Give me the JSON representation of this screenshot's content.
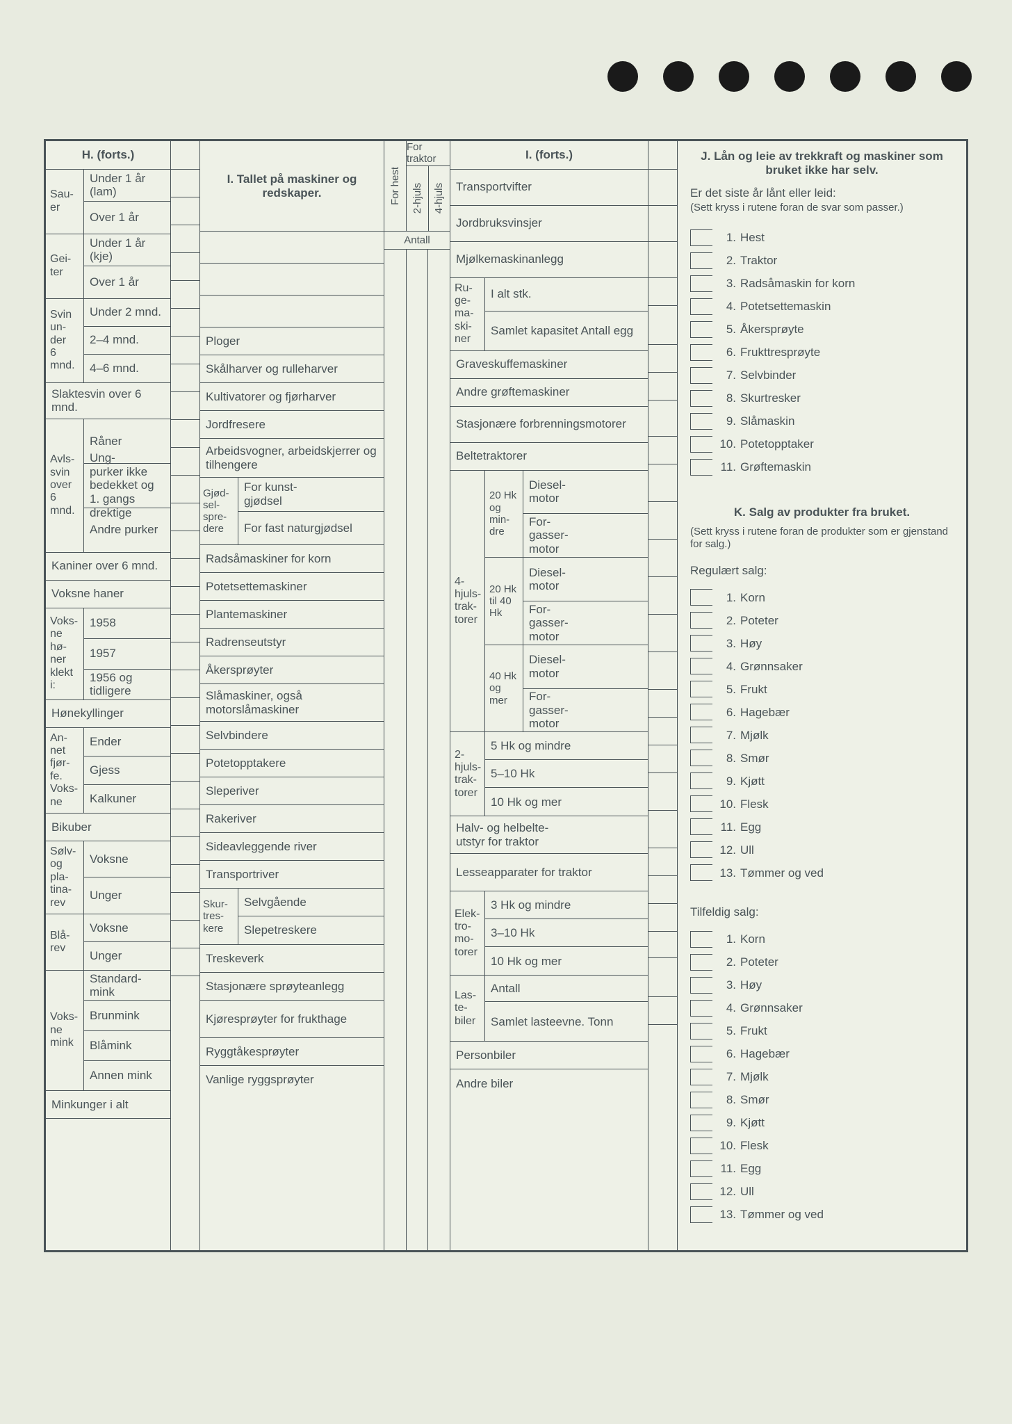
{
  "holes_count": 7,
  "H": {
    "title": "H. (forts.)",
    "groups": [
      {
        "stub": "Sau-\ner",
        "rows": [
          "Under 1 år (lam)",
          "Over 1 år"
        ]
      },
      {
        "stub": "Gei-\nter",
        "rows": [
          "Under 1 år (kje)",
          "Over 1 år"
        ]
      },
      {
        "stub": "Svin\nun-\nder\n6\nmnd.",
        "rows": [
          "Under 2 mnd.",
          "2–4 mnd.",
          "4–6 mnd."
        ]
      },
      {
        "stub": "",
        "span_label": "Slaktesvin over 6 mnd.",
        "rows": []
      },
      {
        "stub": "Avls-\nsvin\nover\n6\nmnd.",
        "rows": [
          "Råner",
          "Ung-\npurker ikke bedekket og 1. gangs drektige",
          "Andre purker"
        ]
      },
      {
        "stub": "",
        "span_label": "Kaniner over 6 mnd.",
        "rows": []
      },
      {
        "stub": "",
        "span_label": "Voksne haner",
        "rows": []
      },
      {
        "stub": "Voks-\nne\nhø-\nner\nklekt\ni:",
        "rows": [
          "1958",
          "1957",
          "1956 og tidligere"
        ]
      },
      {
        "stub": "",
        "span_label": "Hønekyllinger",
        "rows": []
      },
      {
        "stub": "An-\nnet\nfjør-\nfe.\nVoks-\nne",
        "rows": [
          "Ender",
          "Gjess",
          "Kalkuner"
        ]
      },
      {
        "stub": "",
        "span_label": "Bikuber",
        "rows": []
      },
      {
        "stub": "Sølv-\nog\npla-\ntina-\nrev",
        "rows": [
          "Voksne",
          "Unger"
        ]
      },
      {
        "stub": "Blå-\nrev",
        "rows": [
          "Voksne",
          "Unger"
        ]
      },
      {
        "stub": "Voks-\nne\nmink",
        "rows": [
          "Standard-\nmink",
          "Brunmink",
          "Blåmink",
          "Annen mink"
        ]
      },
      {
        "stub": "",
        "span_label": "Minkunger i alt",
        "rows": []
      }
    ]
  },
  "I_left": {
    "title": "I. Tallet på maskiner og redskaper.",
    "traktor_head": "For traktor",
    "traktor_cols": [
      "For hest",
      "2-hjuls",
      "4-hjuls"
    ],
    "antall": "Antall",
    "rows_top_blank_count": 2,
    "rows": [
      "Ploger",
      "Skålharver og rulleharver",
      "Kultivatorer og fjørharver",
      "Jordfresere",
      "Arbeidsvogner, arbeidskjerrer og tilhengere"
    ],
    "gjod": {
      "stub": "Gjød-\nsel-\nspre-\ndere",
      "rows": [
        "For kunst-\ngjødsel",
        "For fast naturgjødsel"
      ]
    },
    "rows2": [
      "Radsåmaskiner for korn",
      "Potetsettemaskiner",
      "Plantemaskiner",
      "Radrenseutstyr",
      "Åkersprøyter",
      "Slåmaskiner, også motorslåmaskiner",
      "Selvbindere",
      "Potetopptakere",
      "Sleperiver",
      "Rakeriver",
      "Sideavleggende river",
      "Transportriver"
    ],
    "skur": {
      "stub": "Skur-\ntres-\nkere",
      "rows": [
        "Selvgående",
        "Slepetreskere"
      ]
    },
    "rows3": [
      "Treskeverk",
      "Stasjonære sprøyteanlegg",
      "Kjøresprøyter for frukthage",
      "Ryggtåkesprøyter",
      "Vanlige ryggsprøyter"
    ]
  },
  "I_right": {
    "title": "I. (forts.)",
    "rows_top": [
      "Transportvifter",
      "Jordbruksvinsjer",
      "Mjølkemaskinanlegg"
    ],
    "ruge": {
      "stub": "Ru-\nge-\nma-\nski-\nner",
      "rows": [
        "I alt stk.",
        "Samlet kapasitet Antall egg"
      ]
    },
    "rows_mid": [
      "Graveskuffemaskiner",
      "Andre grøftemaskiner",
      "Stasjonære forbrenningsmotorer",
      "Beltetraktorer"
    ],
    "fourwheel": {
      "stub": "4-\nhjuls-\ntrak-\ntorer",
      "groups": [
        {
          "stub": "20 Hk og min-\ndre",
          "rows": [
            "Diesel-\nmotor",
            "For-\ngasser-\nmotor"
          ]
        },
        {
          "stub": "20 Hk til 40 Hk",
          "rows": [
            "Diesel-\nmotor",
            "For-\ngasser-\nmotor"
          ]
        },
        {
          "stub": "40 Hk og mer",
          "rows": [
            "Diesel-\nmotor",
            "For-\ngasser-\nmotor"
          ]
        }
      ]
    },
    "twowheel": {
      "stub": "2-\nhjuls-\ntrak-\ntorer",
      "rows": [
        "5 Hk og mindre",
        "5–10 Hk",
        "10 Hk og mer"
      ]
    },
    "rows_after": [
      "Halv- og helbelte-\nutstyr for traktor",
      "Lesseapparater for traktor"
    ],
    "elektro": {
      "stub": "Elek-\ntro-\nmo-\ntorer",
      "rows": [
        "3 Hk og mindre",
        "3–10 Hk",
        "10 Hk og mer"
      ]
    },
    "laste": {
      "stub": "Las-\nte-\nbiler",
      "rows": [
        "Antall",
        "Samlet lasteevne. Tonn"
      ]
    },
    "rows_end": [
      "Personbiler",
      "Andre biler"
    ]
  },
  "J": {
    "title": "J. Lån og leie av trekkraft og maskiner som bruket ikke har selv.",
    "lead": "Er det siste år lånt eller leid:",
    "note": "(Sett kryss i rutene foran de svar som passer.)",
    "items": [
      "Hest",
      "Traktor",
      "Radsåmaskin for korn",
      "Potetsettemaskin",
      "Åkersprøyte",
      "Frukttresprøyte",
      "Selvbinder",
      "Skurtresker",
      "Slåmaskin",
      "Potetopptaker",
      "Grøftemaskin"
    ]
  },
  "K": {
    "title": "K. Salg av produkter fra bruket.",
    "note": "(Sett kryss i rutene foran de produkter som er gjenstand for salg.)",
    "reg_head": "Regulært salg:",
    "reg": [
      "Korn",
      "Poteter",
      "Høy",
      "Grønnsaker",
      "Frukt",
      "Hagebær",
      "Mjølk",
      "Smør",
      "Kjøtt",
      "Flesk",
      "Egg",
      "Ull",
      "Tømmer og ved"
    ],
    "tilf_head": "Tilfeldig salg:",
    "tilf": [
      "Korn",
      "Poteter",
      "Høy",
      "Grønnsaker",
      "Frukt",
      "Hagebær",
      "Mjølk",
      "Smør",
      "Kjøtt",
      "Flesk",
      "Egg",
      "Ull",
      "Tømmer og ved"
    ]
  },
  "colors": {
    "ink": "#4a5458",
    "paper": "#eef1e7",
    "bg": "#e8ebe0",
    "hole": "#1a1a1a"
  }
}
